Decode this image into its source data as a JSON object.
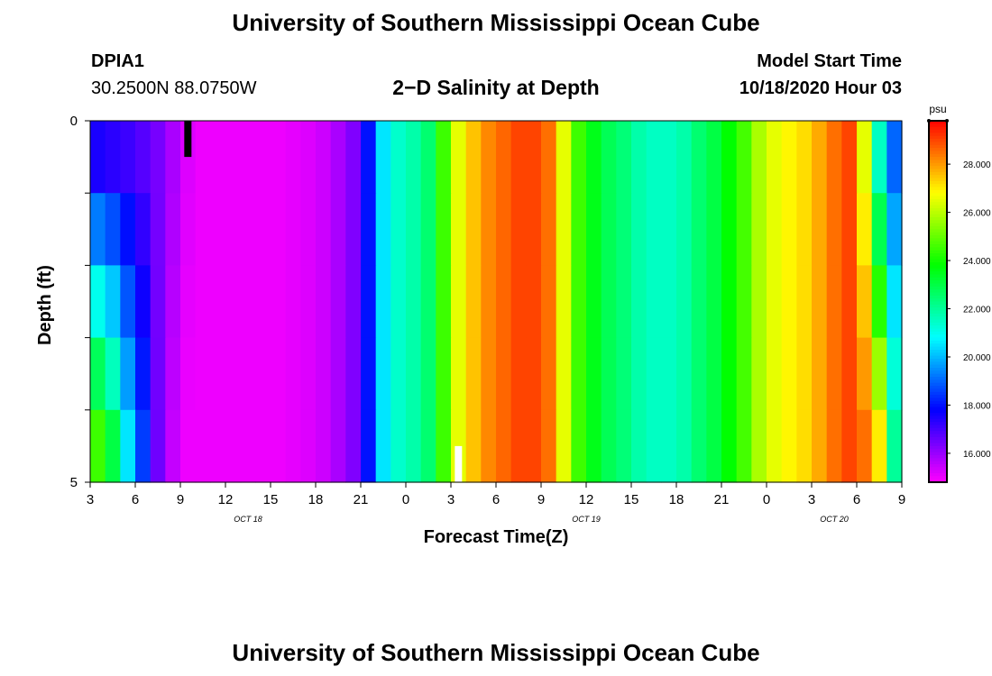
{
  "page": {
    "title_top": "University of Southern Mississippi Ocean Cube",
    "title_bottom": "University of Southern Mississippi Ocean Cube",
    "station_id": "DPIA1",
    "station_coords": "30.2500N 88.0750W",
    "model_start_label": "Model Start Time",
    "model_start_value": "10/18/2020 Hour 03"
  },
  "chart_data": {
    "type": "heatmap",
    "title": "2−D Salinity at Depth",
    "xlabel": "Forecast Time(Z)",
    "ylabel": "Depth (ft)",
    "x_ticks": [
      "3",
      "6",
      "9",
      "12",
      "15",
      "18",
      "21",
      "0",
      "3",
      "6",
      "9",
      "12",
      "15",
      "18",
      "21",
      "0",
      "3",
      "6",
      "9"
    ],
    "date_labels": [
      {
        "text": "OCT 18",
        "tick_index": 3.5
      },
      {
        "text": "OCT 19",
        "tick_index": 11
      },
      {
        "text": "OCT 20",
        "tick_index": 16.5
      }
    ],
    "y_ticks": [
      "0",
      "",
      "",
      "",
      "",
      "5"
    ],
    "ylim": [
      0,
      5
    ],
    "hours_range": [
      0,
      54
    ],
    "colorbar": {
      "unit": "psu",
      "range": [
        14.8,
        29.8
      ],
      "ticks": [
        "16.000",
        "18.000",
        "20.000",
        "22.000",
        "24.000",
        "26.000",
        "28.000"
      ],
      "tick_values": [
        16,
        18,
        20,
        22,
        24,
        26,
        28
      ]
    },
    "surface_salinity_by_hour": [
      17.5,
      17.3,
      17.1,
      16.8,
      16.4,
      15.8,
      15.2,
      15.0,
      15.0,
      15.0,
      15.0,
      15.0,
      15.0,
      15.1,
      15.2,
      15.4,
      15.8,
      16.3,
      18.0,
      20.5,
      21.4,
      21.8,
      22.5,
      24.5,
      26.5,
      27.5,
      28.2,
      28.6,
      29.0,
      29.0,
      28.5,
      26.5,
      24.5,
      23.5,
      22.8,
      22.4,
      21.8,
      21.5,
      21.5,
      21.8,
      22.5,
      23.0,
      23.8,
      24.6,
      25.8,
      26.5,
      26.9,
      27.2,
      27.8,
      28.5,
      29.0,
      26.5,
      21.5,
      19.0,
      18.5
    ],
    "depth_salinity_by_hour": [
      24.5,
      23.0,
      20.5,
      18.5,
      16.5,
      15.5,
      15.0,
      15.0,
      15.0,
      15.0,
      15.0,
      15.0,
      15.0,
      15.1,
      15.2,
      15.4,
      15.8,
      16.3,
      18.0,
      20.5,
      21.4,
      21.8,
      22.5,
      24.5,
      26.5,
      27.5,
      28.2,
      28.6,
      29.0,
      29.0,
      28.5,
      26.5,
      24.5,
      23.5,
      22.8,
      22.4,
      21.8,
      21.5,
      21.5,
      21.8,
      22.5,
      23.0,
      23.8,
      24.6,
      25.8,
      26.5,
      26.9,
      27.2,
      27.8,
      28.5,
      29.0,
      28.5,
      27.0,
      22.0,
      19.0
    ],
    "markers": [
      {
        "color": "#000000",
        "hour": 6.5,
        "depth_from": 0,
        "depth_to": 0.5
      },
      {
        "color": "#ffffff",
        "hour": 24.5,
        "depth_from": 4.5,
        "depth_to": 5
      }
    ]
  }
}
